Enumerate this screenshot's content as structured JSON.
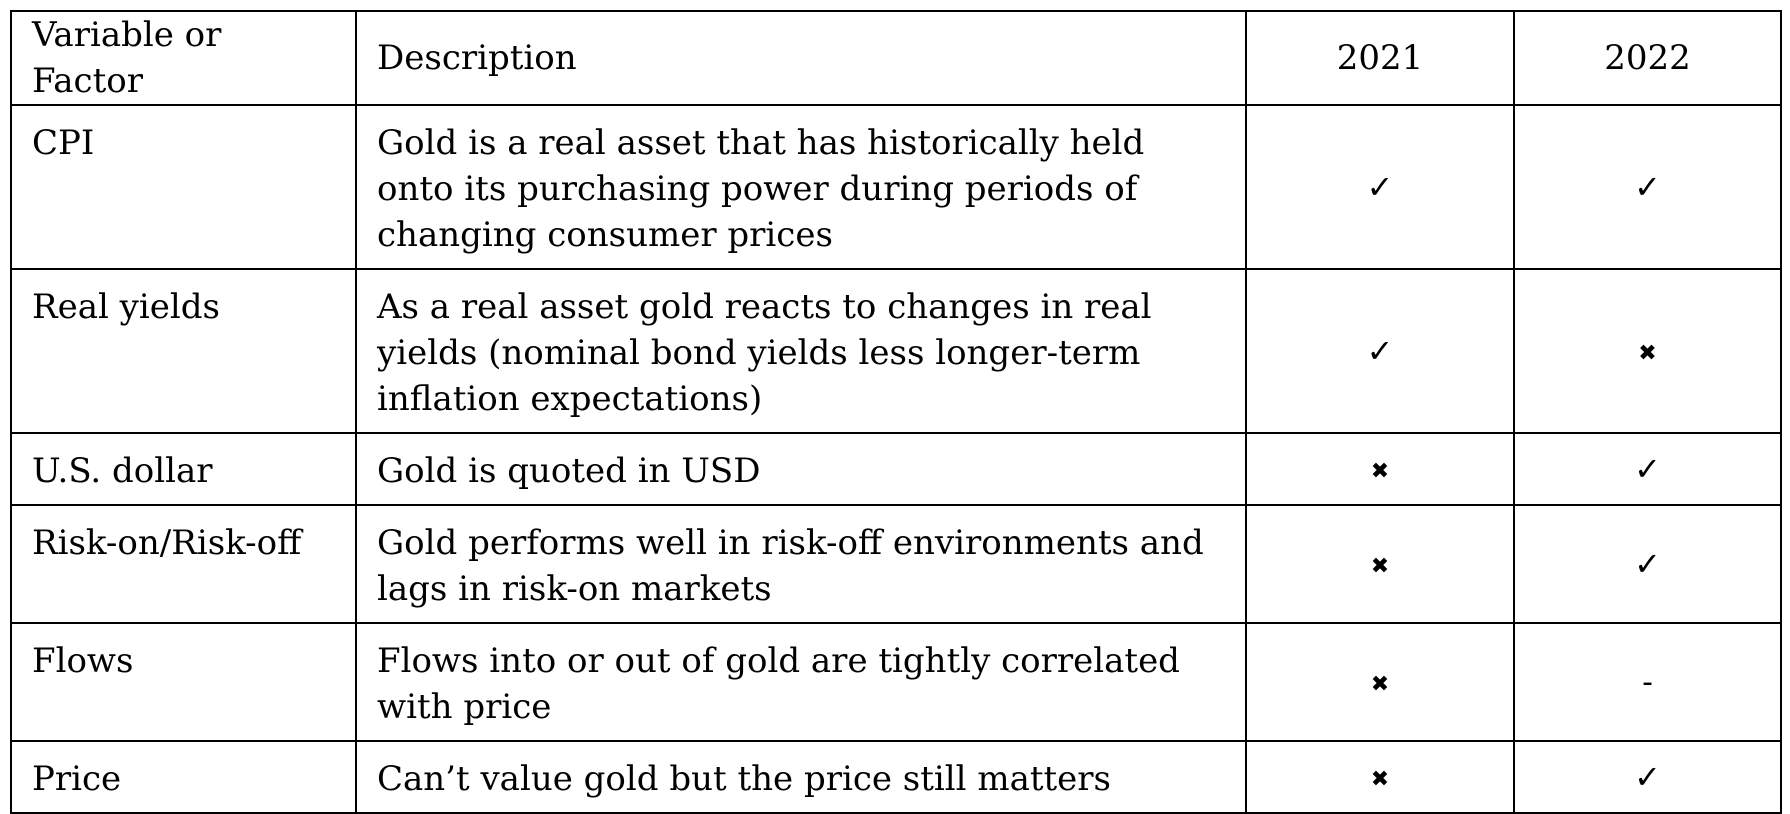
{
  "table": {
    "headers": {
      "variable": "Variable or Factor",
      "description": "Description",
      "y2021": "2021",
      "y2022": "2022"
    },
    "rows": [
      {
        "variable": "CPI",
        "description": "Gold is a real asset that has historically held onto its purchasing power during periods of changing consumer prices",
        "y2021": "✓",
        "y2022": "✓"
      },
      {
        "variable": "Real yields",
        "description": "As a real asset gold reacts to changes in real yields (nominal bond yields less longer-term inflation expectations)",
        "y2021": "✓",
        "y2022": "✖"
      },
      {
        "variable": "U.S. dollar",
        "description": "Gold is quoted in USD",
        "y2021": "✖",
        "y2022": "✓"
      },
      {
        "variable": "Risk-on/Risk-off",
        "description": "Gold performs well in risk-off environments and lags in risk-on markets",
        "y2021": "✖",
        "y2022": "✓"
      },
      {
        "variable": "Flows",
        "description": "Flows into or out of gold are tightly correlated with price",
        "y2021": "✖",
        "y2022": "-"
      },
      {
        "variable": "Price",
        "description": "Can’t value gold but the price still matters",
        "y2021": "✖",
        "y2022": "✓"
      }
    ]
  }
}
